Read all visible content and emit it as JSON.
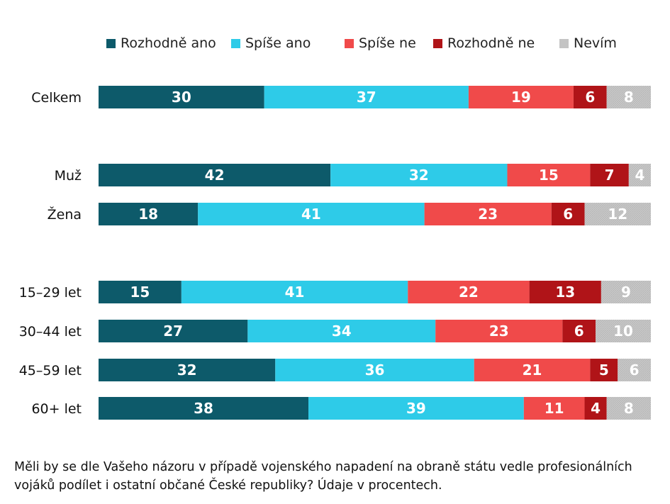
{
  "chart_data": {
    "type": "bar",
    "orientation": "horizontal",
    "stacked": true,
    "xlim": [
      0,
      100
    ],
    "categories": [
      "Celkem",
      "Muž",
      "Žena",
      "15–29 let",
      "30–44 let",
      "45–59 let",
      "60+ let"
    ],
    "groups": [
      [
        "Celkem"
      ],
      [
        "Muž",
        "Žena"
      ],
      [
        "15–29 let",
        "30–44 let",
        "45–59 let",
        "60+ let"
      ]
    ],
    "series": [
      {
        "name": "Rozhodně ano",
        "color": "#0d5a6a",
        "values": [
          30,
          42,
          18,
          15,
          27,
          32,
          38
        ]
      },
      {
        "name": "Spíše ano",
        "color": "#2ecbe8",
        "values": [
          37,
          32,
          41,
          41,
          34,
          36,
          39
        ]
      },
      {
        "name": "Spíše ne",
        "color": "#f04a4a",
        "values": [
          19,
          15,
          23,
          22,
          23,
          21,
          11
        ]
      },
      {
        "name": "Rozhodně ne",
        "color": "#b01418",
        "values": [
          6,
          7,
          6,
          13,
          6,
          5,
          4
        ]
      },
      {
        "name": "Nevím",
        "color": "#c4c4c4",
        "pattern": "hatched",
        "values": [
          8,
          4,
          12,
          9,
          10,
          6,
          8
        ]
      }
    ],
    "legend_position": "top",
    "caption": "Měli by se dle Vašeho názoru v případě vojenského napadení na obraně státu vedle profesionálních vojáků podílet i ostatní občané České republiky? Údaje v procentech."
  }
}
